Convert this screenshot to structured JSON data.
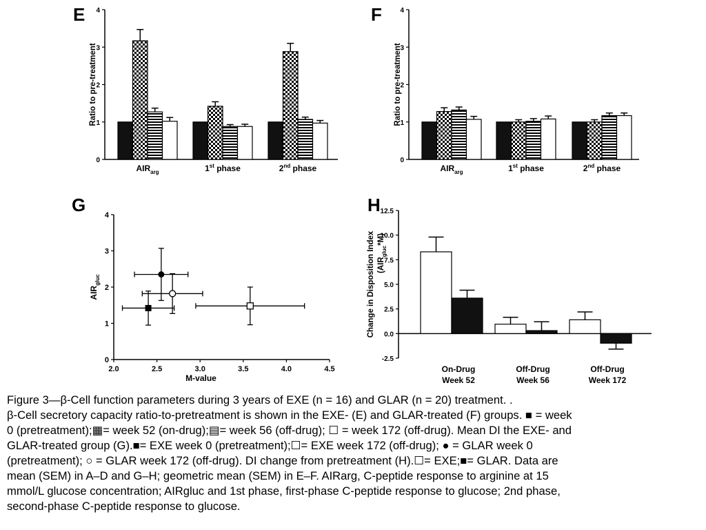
{
  "chart_data": [
    {
      "panel": "E",
      "type": "bar",
      "ylabel": "Ratio to pre-treatment",
      "ylim": [
        0,
        4
      ],
      "yticks": [
        "0",
        "1",
        "2",
        "3",
        "4"
      ],
      "groups": [
        {
          "label": "AIR",
          "sub": "arg",
          "sup": ""
        },
        {
          "label": "1",
          "sup": "st",
          "rest": " phase"
        },
        {
          "label": "2",
          "sup": "nd",
          "rest": " phase"
        }
      ],
      "series": [
        {
          "pattern": "solid",
          "values": [
            1.0,
            1.0,
            1.0
          ],
          "err": [
            0,
            0,
            0
          ]
        },
        {
          "pattern": "check",
          "values": [
            3.17,
            1.42,
            2.88
          ],
          "err": [
            0.3,
            0.12,
            0.22
          ]
        },
        {
          "pattern": "hstripe",
          "values": [
            1.27,
            0.88,
            1.07
          ],
          "err": [
            0.1,
            0.05,
            0.06
          ]
        },
        {
          "pattern": "open",
          "values": [
            1.02,
            0.88,
            0.97
          ],
          "err": [
            0.1,
            0.06,
            0.07
          ]
        }
      ]
    },
    {
      "panel": "F",
      "type": "bar",
      "ylabel": "Ratio to pre-treatment",
      "ylim": [
        0,
        4
      ],
      "yticks": [
        "0",
        "1",
        "2",
        "3",
        "4"
      ],
      "groups": [
        {
          "label": "AIR",
          "sub": "arg",
          "sup": ""
        },
        {
          "label": "1",
          "sup": "st",
          "rest": " phase"
        },
        {
          "label": "2",
          "sup": "nd",
          "rest": " phase"
        }
      ],
      "series": [
        {
          "pattern": "solid",
          "values": [
            1.0,
            1.0,
            1.0
          ],
          "err": [
            0,
            0,
            0
          ]
        },
        {
          "pattern": "check",
          "values": [
            1.28,
            1.0,
            1.0
          ],
          "err": [
            0.1,
            0.06,
            0.06
          ]
        },
        {
          "pattern": "hstripe",
          "values": [
            1.32,
            1.02,
            1.17
          ],
          "err": [
            0.08,
            0.07,
            0.07
          ]
        },
        {
          "pattern": "open",
          "values": [
            1.07,
            1.08,
            1.17
          ],
          "err": [
            0.08,
            0.08,
            0.07
          ]
        }
      ]
    },
    {
      "panel": "G",
      "type": "scatter",
      "xlabel": "M-value",
      "ylabel": "AIR",
      "ylabel_sub": "gluc",
      "xlim": [
        2.0,
        4.5
      ],
      "ylim": [
        0,
        4
      ],
      "xticks": [
        "2.0",
        "2.5",
        "3.0",
        "3.5",
        "4.0",
        "4.5"
      ],
      "yticks": [
        "0",
        "1",
        "2",
        "3",
        "4"
      ],
      "points": [
        {
          "marker": "filled-square",
          "x": 2.4,
          "y": 1.42,
          "xerr": 0.3,
          "yerr": 0.47
        },
        {
          "marker": "open-square",
          "x": 3.58,
          "y": 1.48,
          "xerr": 0.63,
          "yerr": 0.52
        },
        {
          "marker": "filled-circle",
          "x": 2.55,
          "y": 2.35,
          "xerr": 0.31,
          "yerr": 0.72
        },
        {
          "marker": "open-circle",
          "x": 2.68,
          "y": 1.82,
          "xerr": 0.35,
          "yerr": 0.55
        }
      ]
    },
    {
      "panel": "H",
      "type": "bar",
      "ylabel": "Change in Disposition Index",
      "ylabel2": "(AIR",
      "ylabel2_sub": "gluc",
      "ylabel2_rest": "*M)",
      "ylim": [
        -2.5,
        12.5
      ],
      "yticks": [
        "-2.5",
        "0.0",
        "2.5",
        "5.0",
        "7.5",
        "10.0",
        "12.5"
      ],
      "groups": [
        {
          "line1": "On-Drug",
          "line2": "Week 52"
        },
        {
          "line1": "Off-Drug",
          "line2": "Week 56"
        },
        {
          "line1": "Off-Drug",
          "line2": "Week 172"
        }
      ],
      "series": [
        {
          "pattern": "open",
          "values": [
            8.3,
            0.95,
            1.4
          ],
          "err": [
            1.5,
            0.7,
            0.8
          ]
        },
        {
          "pattern": "solid",
          "values": [
            3.6,
            0.3,
            -0.98
          ],
          "err": [
            0.8,
            0.9,
            0.6
          ]
        }
      ]
    }
  ],
  "caption": [
    "Figure 3—β-Cell function parameters during 3 years of EXE (n = 16) and GLAR (n = 20) treatment. .",
    "β-Cell secretory capacity ratio-to-pretreatment is shown in the EXE- (E) and GLAR-treated (F) groups. ■ = week",
    "0 (pretreatment);▦= week 52 (on-drug);▤= week 56 (off-drug); ☐ = week 172 (off-drug). Mean DI the EXE- and",
    "GLAR-treated group (G).■= EXE week 0 (pretreatment);☐= EXE week 172 (off-drug); ● = GLAR week 0",
    "(pretreatment); ○ = GLAR week 172 (off-drug). DI change from pretreatment (H).☐= EXE;■= GLAR. Data are",
    "mean (SEM) in A–D and G–H; geometric mean (SEM) in E–F. AIRarg, C-peptide response to arginine at 15",
    "mmol/L glucose concentration; AIRgluc and 1st phase, first-phase C-peptide response to glucose; 2nd phase,",
    "second-phase C-peptide response to glucose."
  ]
}
